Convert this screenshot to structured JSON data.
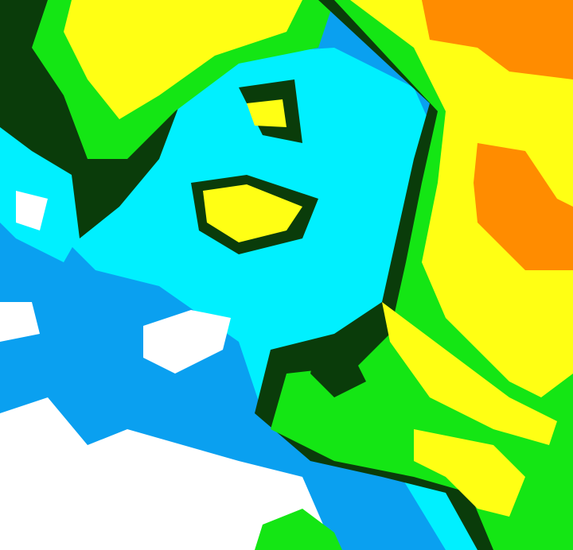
{
  "image": {
    "kind": "false-color enhanced satellite imagery",
    "palette": {
      "white": "#ffffff",
      "blue": "#0aa0f0",
      "cyan": "#00f0ff",
      "dark_green": "#0a3c0a",
      "green": "#14e614",
      "yellow": "#ffff14",
      "orange": "#ff8c00"
    }
  }
}
